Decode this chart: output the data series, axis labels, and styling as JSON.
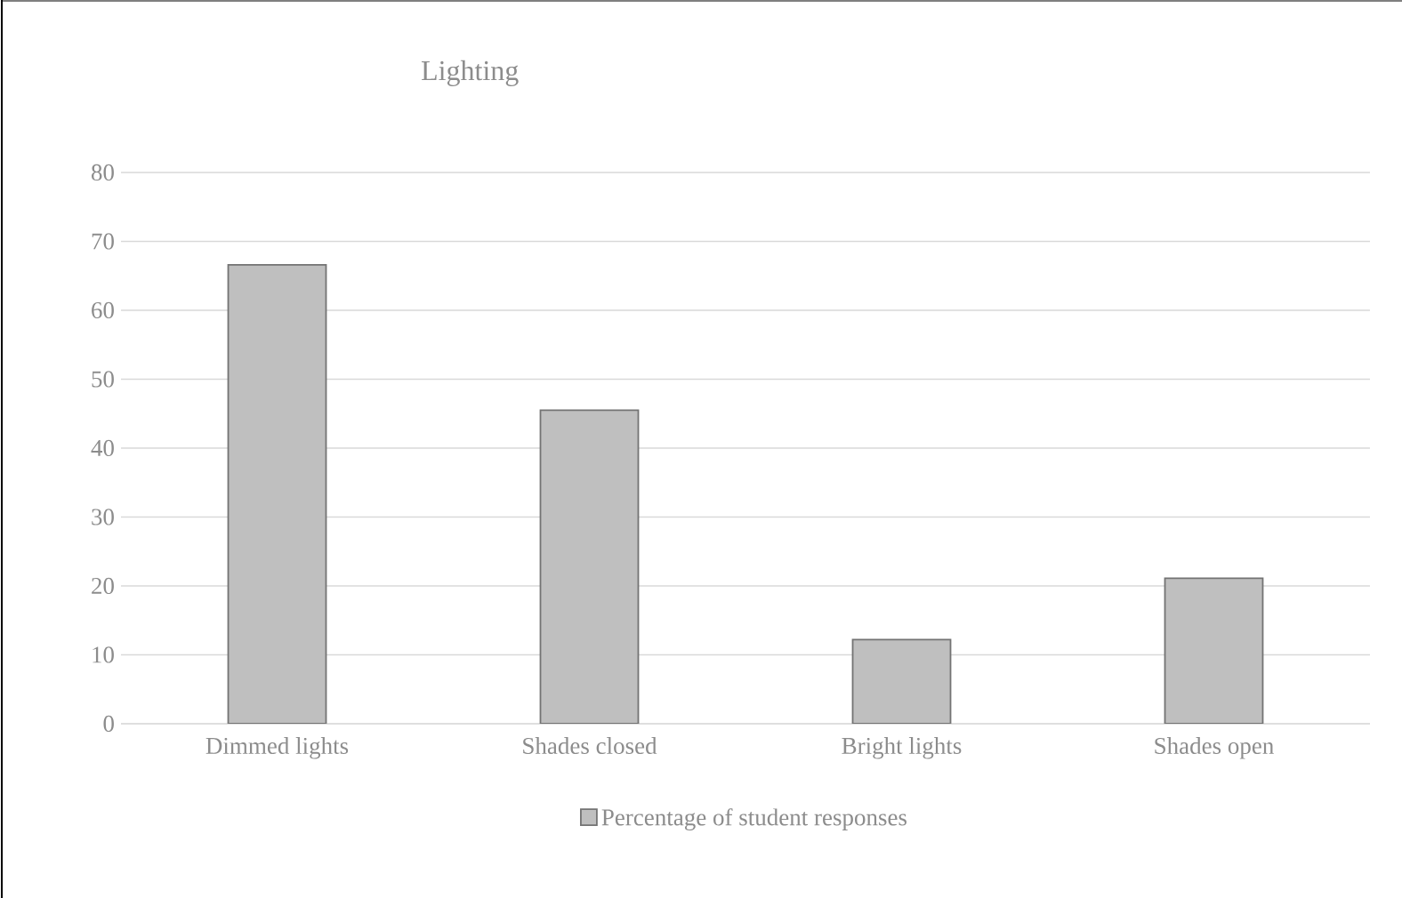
{
  "chart_data": {
    "type": "bar",
    "title": "Lighting",
    "categories": [
      "Dimmed lights",
      "Shades closed",
      "Bright lights",
      "Shades open"
    ],
    "series": [
      {
        "name": "Percentage of student responses",
        "color": "#bfbfbf",
        "values": [
          66.6,
          45.5,
          12.2,
          21.1
        ]
      }
    ],
    "ylim": [
      0,
      80
    ],
    "yticks": [
      0,
      10,
      20,
      30,
      40,
      50,
      60,
      70,
      80
    ],
    "grid": "y",
    "legend": "bottom"
  }
}
